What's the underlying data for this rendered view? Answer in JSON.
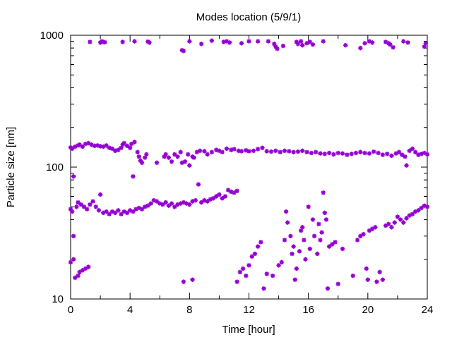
{
  "chart_data": {
    "type": "scatter",
    "title": "Modes location (5/9/1)",
    "xlabel": "Time [hour]",
    "ylabel": "Particle size [nm]",
    "xlim": [
      0,
      24
    ],
    "ylim": [
      10,
      1000
    ],
    "yscale": "log",
    "xticks": [
      0,
      4,
      8,
      12,
      16,
      20,
      24
    ],
    "yticks": [
      10,
      100,
      1000
    ],
    "grid": false,
    "marker_color": "#9400D3",
    "marker": "asterisk",
    "series": [
      {
        "values": [
          [
            1.3,
            890
          ],
          [
            2.0,
            880
          ],
          [
            2.1,
            900
          ],
          [
            2.2,
            890
          ],
          [
            2.3,
            885
          ],
          [
            3.5,
            890
          ],
          [
            4.3,
            900
          ],
          [
            5.2,
            895
          ],
          [
            5.3,
            880
          ],
          [
            7.5,
            770
          ],
          [
            7.6,
            760
          ],
          [
            8.0,
            900
          ],
          [
            8.8,
            860
          ],
          [
            9.5,
            910
          ],
          [
            10.3,
            890
          ],
          [
            10.5,
            900
          ],
          [
            10.7,
            880
          ],
          [
            11.5,
            870
          ],
          [
            12.0,
            900
          ],
          [
            12.6,
            900
          ],
          [
            13.3,
            900
          ],
          [
            13.7,
            860
          ],
          [
            13.8,
            820
          ],
          [
            13.9,
            790
          ],
          [
            14.3,
            830
          ],
          [
            15.2,
            890
          ],
          [
            15.3,
            860
          ],
          [
            15.5,
            900
          ],
          [
            15.6,
            840
          ],
          [
            15.9,
            870
          ],
          [
            16.1,
            890
          ],
          [
            16.3,
            850
          ],
          [
            17.0,
            900
          ],
          [
            18.5,
            840
          ],
          [
            19.5,
            800
          ],
          [
            19.8,
            870
          ],
          [
            20.1,
            900
          ],
          [
            20.3,
            880
          ],
          [
            21.2,
            890
          ],
          [
            21.4,
            870
          ],
          [
            21.5,
            850
          ],
          [
            21.7,
            810
          ],
          [
            22.4,
            900
          ],
          [
            22.7,
            880
          ],
          [
            23.8,
            820
          ],
          [
            23.9,
            870
          ]
        ]
      },
      {
        "values": [
          [
            0.0,
            141
          ],
          [
            0.1,
            138
          ],
          [
            0.2,
            85
          ],
          [
            0.3,
            143
          ],
          [
            0.5,
            146
          ],
          [
            0.6,
            148
          ],
          [
            0.8,
            143
          ],
          [
            1.0,
            150
          ],
          [
            1.2,
            152
          ],
          [
            1.4,
            148
          ],
          [
            1.6,
            145
          ],
          [
            1.8,
            146
          ],
          [
            2.0,
            144
          ],
          [
            2.2,
            143
          ],
          [
            2.4,
            146
          ],
          [
            2.6,
            140
          ],
          [
            2.8,
            138
          ],
          [
            3.0,
            133
          ],
          [
            3.2,
            135
          ],
          [
            3.4,
            140
          ],
          [
            3.5,
            148
          ],
          [
            3.6,
            152
          ],
          [
            3.8,
            145
          ],
          [
            4.0,
            140
          ],
          [
            4.1,
            150
          ],
          [
            4.2,
            85
          ],
          [
            4.3,
            155
          ],
          [
            4.5,
            130
          ],
          [
            4.6,
            120
          ],
          [
            4.7,
            112
          ],
          [
            4.8,
            108
          ],
          [
            5.0,
            118
          ],
          [
            5.1,
            125
          ],
          [
            5.8,
            108
          ],
          [
            6.3,
            120
          ],
          [
            6.4,
            125
          ],
          [
            6.6,
            118
          ],
          [
            6.8,
            110
          ],
          [
            7.0,
            125
          ],
          [
            7.2,
            120
          ],
          [
            7.4,
            130
          ],
          [
            7.5,
            108
          ],
          [
            7.7,
            110
          ],
          [
            7.9,
            125
          ],
          [
            8.0,
            103
          ],
          [
            8.2,
            120
          ],
          [
            8.3,
            118
          ],
          [
            8.5,
            130
          ],
          [
            8.7,
            133
          ],
          [
            9.0,
            132
          ],
          [
            9.2,
            125
          ],
          [
            9.5,
            130
          ],
          [
            9.8,
            135
          ],
          [
            10.0,
            133
          ],
          [
            10.2,
            130
          ],
          [
            10.5,
            138
          ],
          [
            10.8,
            135
          ],
          [
            11.0,
            137
          ],
          [
            11.3,
            133
          ],
          [
            11.5,
            132
          ],
          [
            11.8,
            134
          ],
          [
            12.0,
            132
          ],
          [
            12.3,
            133
          ],
          [
            12.6,
            137
          ],
          [
            12.9,
            140
          ],
          [
            13.2,
            132
          ],
          [
            13.5,
            131
          ],
          [
            13.8,
            133
          ],
          [
            14.1,
            130
          ],
          [
            14.4,
            133
          ],
          [
            14.7,
            132
          ],
          [
            15.0,
            130
          ],
          [
            15.3,
            131
          ],
          [
            15.6,
            133
          ],
          [
            15.9,
            130
          ],
          [
            16.2,
            128
          ],
          [
            16.5,
            130
          ],
          [
            16.8,
            127
          ],
          [
            17.1,
            126
          ],
          [
            17.4,
            128
          ],
          [
            17.7,
            125
          ],
          [
            18.0,
            128
          ],
          [
            18.3,
            127
          ],
          [
            18.6,
            124
          ],
          [
            18.9,
            126
          ],
          [
            19.2,
            128
          ],
          [
            19.5,
            130
          ],
          [
            19.8,
            128
          ],
          [
            20.1,
            127
          ],
          [
            20.4,
            131
          ],
          [
            20.7,
            128
          ],
          [
            21.0,
            124
          ],
          [
            21.3,
            126
          ],
          [
            21.6,
            122
          ],
          [
            21.9,
            127
          ],
          [
            22.1,
            130
          ],
          [
            22.3,
            124
          ],
          [
            22.5,
            120
          ],
          [
            22.6,
            103
          ],
          [
            22.8,
            133
          ],
          [
            23.0,
            138
          ],
          [
            23.2,
            130
          ],
          [
            23.4,
            124
          ],
          [
            23.6,
            126
          ],
          [
            23.8,
            128
          ],
          [
            24.0,
            125
          ]
        ]
      },
      {
        "values": [
          [
            0.0,
            48
          ],
          [
            0.1,
            46
          ],
          [
            0.2,
            30
          ],
          [
            0.4,
            50
          ],
          [
            0.5,
            54
          ],
          [
            0.7,
            52
          ],
          [
            0.9,
            50
          ],
          [
            1.1,
            48
          ],
          [
            1.3,
            52
          ],
          [
            1.5,
            55
          ],
          [
            1.7,
            50
          ],
          [
            1.9,
            47
          ],
          [
            2.0,
            62
          ],
          [
            2.2,
            45
          ],
          [
            2.4,
            46
          ],
          [
            2.6,
            44
          ],
          [
            2.8,
            46
          ],
          [
            3.0,
            45
          ],
          [
            3.2,
            47
          ],
          [
            3.4,
            44
          ],
          [
            3.6,
            46
          ],
          [
            3.8,
            45
          ],
          [
            4.0,
            47
          ],
          [
            4.2,
            46
          ],
          [
            4.4,
            48
          ],
          [
            4.6,
            49
          ],
          [
            4.8,
            48
          ],
          [
            5.0,
            50
          ],
          [
            5.2,
            51
          ],
          [
            5.4,
            53
          ],
          [
            5.6,
            56
          ],
          [
            5.8,
            55
          ],
          [
            6.0,
            53
          ],
          [
            6.2,
            52
          ],
          [
            6.4,
            54
          ],
          [
            6.6,
            51
          ],
          [
            6.8,
            53
          ],
          [
            7.0,
            50
          ],
          [
            7.2,
            52
          ],
          [
            7.4,
            53
          ],
          [
            7.6,
            54
          ],
          [
            7.8,
            53
          ],
          [
            8.0,
            52
          ],
          [
            8.2,
            55
          ],
          [
            8.4,
            56
          ],
          [
            8.6,
            74
          ],
          [
            8.8,
            54
          ],
          [
            9.0,
            56
          ],
          [
            9.2,
            55
          ],
          [
            9.4,
            57
          ],
          [
            9.6,
            58
          ],
          [
            9.8,
            60
          ],
          [
            10.0,
            62
          ],
          [
            10.2,
            58
          ],
          [
            10.4,
            60
          ],
          [
            10.6,
            67
          ],
          [
            10.8,
            65
          ],
          [
            11.0,
            64
          ],
          [
            11.2,
            66
          ]
        ]
      },
      {
        "values": [
          [
            0.0,
            19
          ],
          [
            0.2,
            20
          ],
          [
            0.3,
            14.5
          ],
          [
            0.5,
            15
          ],
          [
            0.6,
            16
          ],
          [
            0.8,
            16.5
          ],
          [
            1.0,
            17
          ],
          [
            1.2,
            17.5
          ]
        ]
      },
      {
        "values": [
          [
            7.6,
            13.5
          ],
          [
            8.2,
            14
          ],
          [
            11.2,
            13.5
          ],
          [
            11.4,
            16
          ],
          [
            11.6,
            17
          ],
          [
            11.8,
            15
          ],
          [
            12.0,
            18
          ],
          [
            12.2,
            21
          ],
          [
            12.4,
            22
          ],
          [
            12.6,
            25
          ],
          [
            12.8,
            27
          ],
          [
            13.0,
            12
          ],
          [
            13.2,
            15.5
          ],
          [
            13.6,
            15
          ],
          [
            14.0,
            18
          ],
          [
            14.2,
            19
          ],
          [
            14.4,
            28
          ],
          [
            14.5,
            46
          ],
          [
            14.6,
            38
          ],
          [
            14.8,
            30
          ],
          [
            14.9,
            22
          ],
          [
            15.0,
            25
          ],
          [
            15.1,
            14
          ],
          [
            15.2,
            17
          ],
          [
            15.4,
            23
          ],
          [
            15.5,
            33
          ],
          [
            15.6,
            35
          ],
          [
            15.7,
            28
          ],
          [
            15.8,
            20
          ],
          [
            16.0,
            50
          ],
          [
            16.1,
            24
          ],
          [
            16.3,
            40
          ],
          [
            16.4,
            30
          ],
          [
            16.6,
            22
          ],
          [
            16.7,
            37
          ],
          [
            16.8,
            28
          ],
          [
            16.9,
            32
          ],
          [
            17.0,
            64
          ],
          [
            17.1,
            45
          ],
          [
            17.2,
            40
          ],
          [
            17.3,
            12
          ],
          [
            17.4,
            25
          ],
          [
            17.6,
            26
          ],
          [
            17.8,
            27
          ],
          [
            18.0,
            13
          ],
          [
            18.3,
            24
          ],
          [
            19.0,
            15
          ],
          [
            19.3,
            28
          ],
          [
            19.5,
            30
          ],
          [
            19.7,
            31
          ],
          [
            19.9,
            17
          ],
          [
            20.0,
            14
          ],
          [
            20.1,
            33
          ],
          [
            20.3,
            34
          ],
          [
            20.5,
            35
          ],
          [
            20.6,
            13.5
          ],
          [
            20.8,
            16
          ],
          [
            21.0,
            14
          ],
          [
            21.2,
            36
          ],
          [
            21.4,
            37
          ],
          [
            21.6,
            35
          ],
          [
            21.8,
            38
          ],
          [
            22.0,
            42
          ],
          [
            22.2,
            40
          ],
          [
            22.4,
            38
          ],
          [
            22.6,
            41
          ],
          [
            22.8,
            43
          ],
          [
            23.0,
            44
          ],
          [
            23.2,
            46
          ],
          [
            23.4,
            47
          ],
          [
            23.6,
            49
          ],
          [
            23.8,
            51
          ],
          [
            24.0,
            50
          ]
        ]
      }
    ]
  }
}
